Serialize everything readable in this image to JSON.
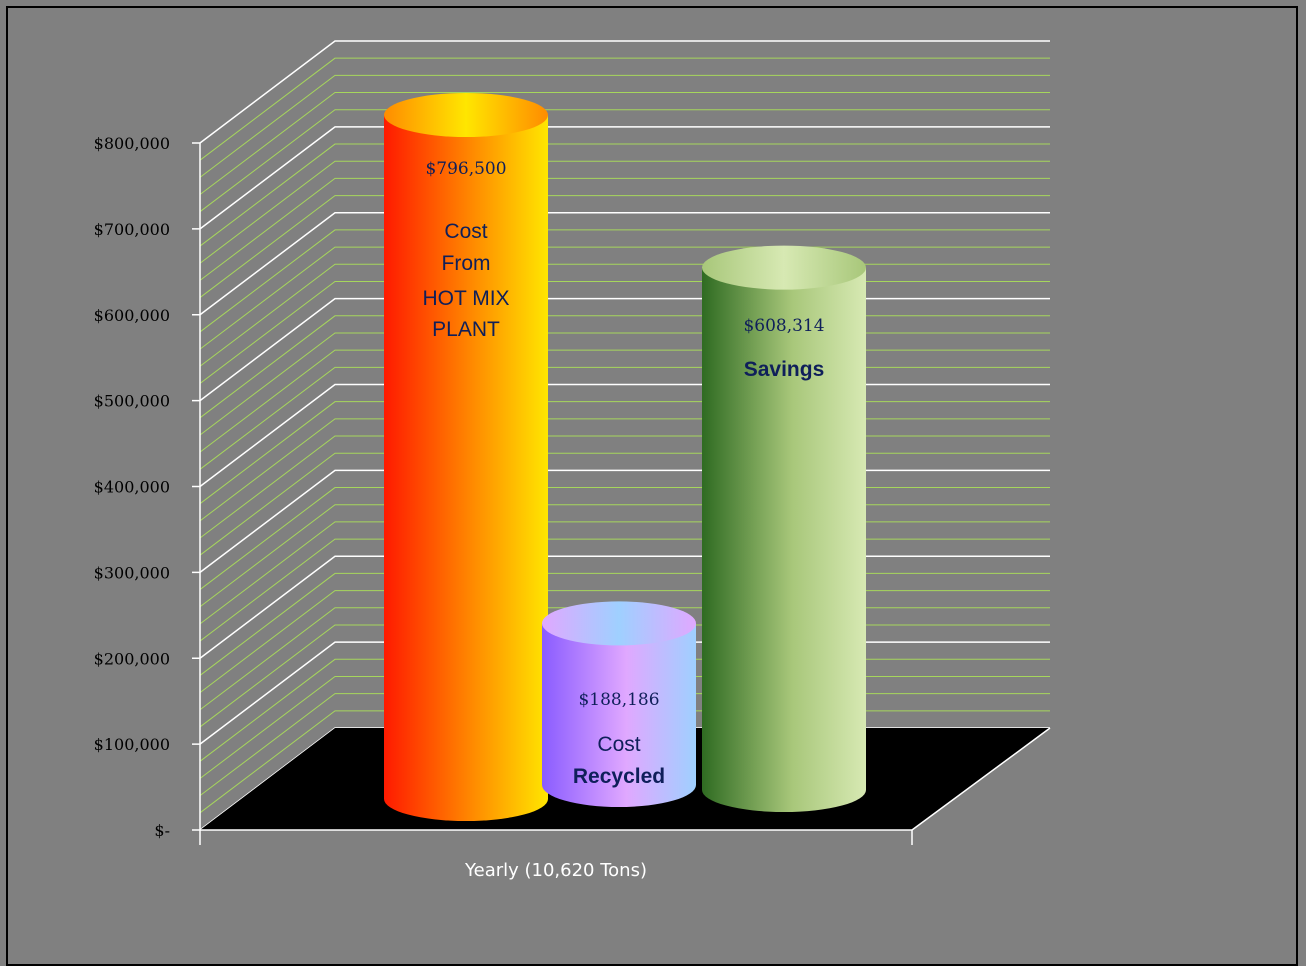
{
  "chart_data": {
    "type": "bar",
    "style": "3d-cylinder",
    "categories": [
      "Yearly (10,620 Tons)"
    ],
    "series": [
      {
        "name": "Cost From HOT MIX PLANT",
        "value": 796500,
        "value_label": "$796,500",
        "text_lines": [
          "Cost",
          "From",
          "HOT MIX",
          "PLANT"
        ],
        "bold_line": "",
        "colors": [
          "#ff1a00",
          "#ff8c00",
          "#ffe600"
        ]
      },
      {
        "name": "Cost Recycled",
        "value": 188186,
        "value_label": "$188,186",
        "text_lines": [
          "Cost"
        ],
        "bold_line": "Recycled",
        "colors": [
          "#8a5cff",
          "#e0a8ff",
          "#9fd0ff"
        ]
      },
      {
        "name": "Savings",
        "value": 608314,
        "value_label": "$608,314",
        "text_lines": [],
        "bold_line": "Savings",
        "colors": [
          "#2f6b22",
          "#a8c77a",
          "#d7e9b3"
        ]
      }
    ],
    "ytick_labels": [
      "$-",
      "$100,000",
      "$200,000",
      "$300,000",
      "$400,000",
      "$500,000",
      "$600,000",
      "$700,000",
      "$800,000"
    ],
    "ylim": [
      0,
      800000
    ],
    "grid": true,
    "major_grid_color": "#ffffff",
    "minor_grid_color": "#a6d65c",
    "floor_color": "#000000",
    "background": "#808080"
  }
}
